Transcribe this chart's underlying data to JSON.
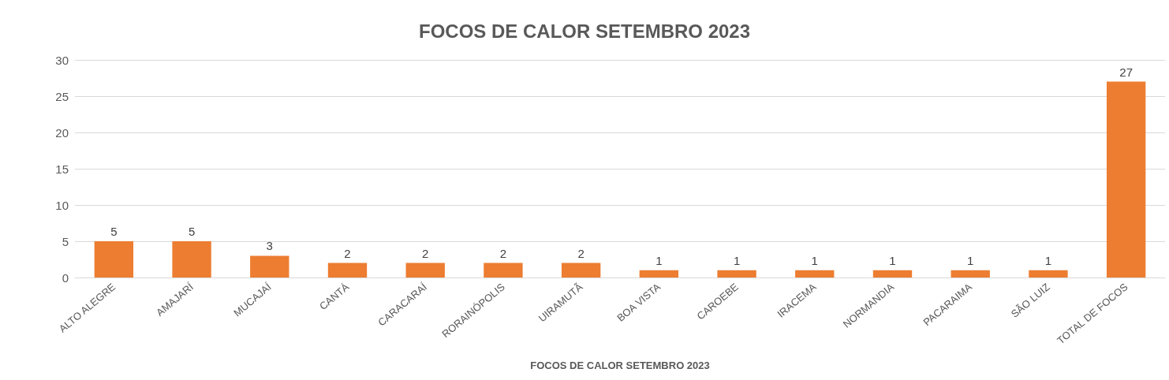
{
  "chart_data": {
    "type": "bar",
    "title": "FOCOS DE CALOR SETEMBRO 2023",
    "xlabel": "FOCOS DE CALOR SETEMBRO 2023",
    "categories": [
      "ALTO ALEGRE",
      "AMAJARÍ",
      "MUCAJAÍ",
      "CANTÁ",
      "CARACARAÍ",
      "RORAINÓPOLIS",
      "UIRAMUTÃ",
      "BOA VISTA",
      "CAROEBE",
      "IRACEMA",
      "NORMANDIA",
      "PACARAIMA",
      "SÃO LUIZ",
      "TOTAL DE FOCOS"
    ],
    "values": [
      5,
      5,
      3,
      2,
      2,
      2,
      2,
      1,
      1,
      1,
      1,
      1,
      1,
      27
    ],
    "color": "#ed7d31",
    "ylim": [
      0,
      30
    ],
    "yticks": [
      0,
      5,
      10,
      15,
      20,
      25,
      30
    ],
    "grid": "y",
    "data_labels": true
  }
}
